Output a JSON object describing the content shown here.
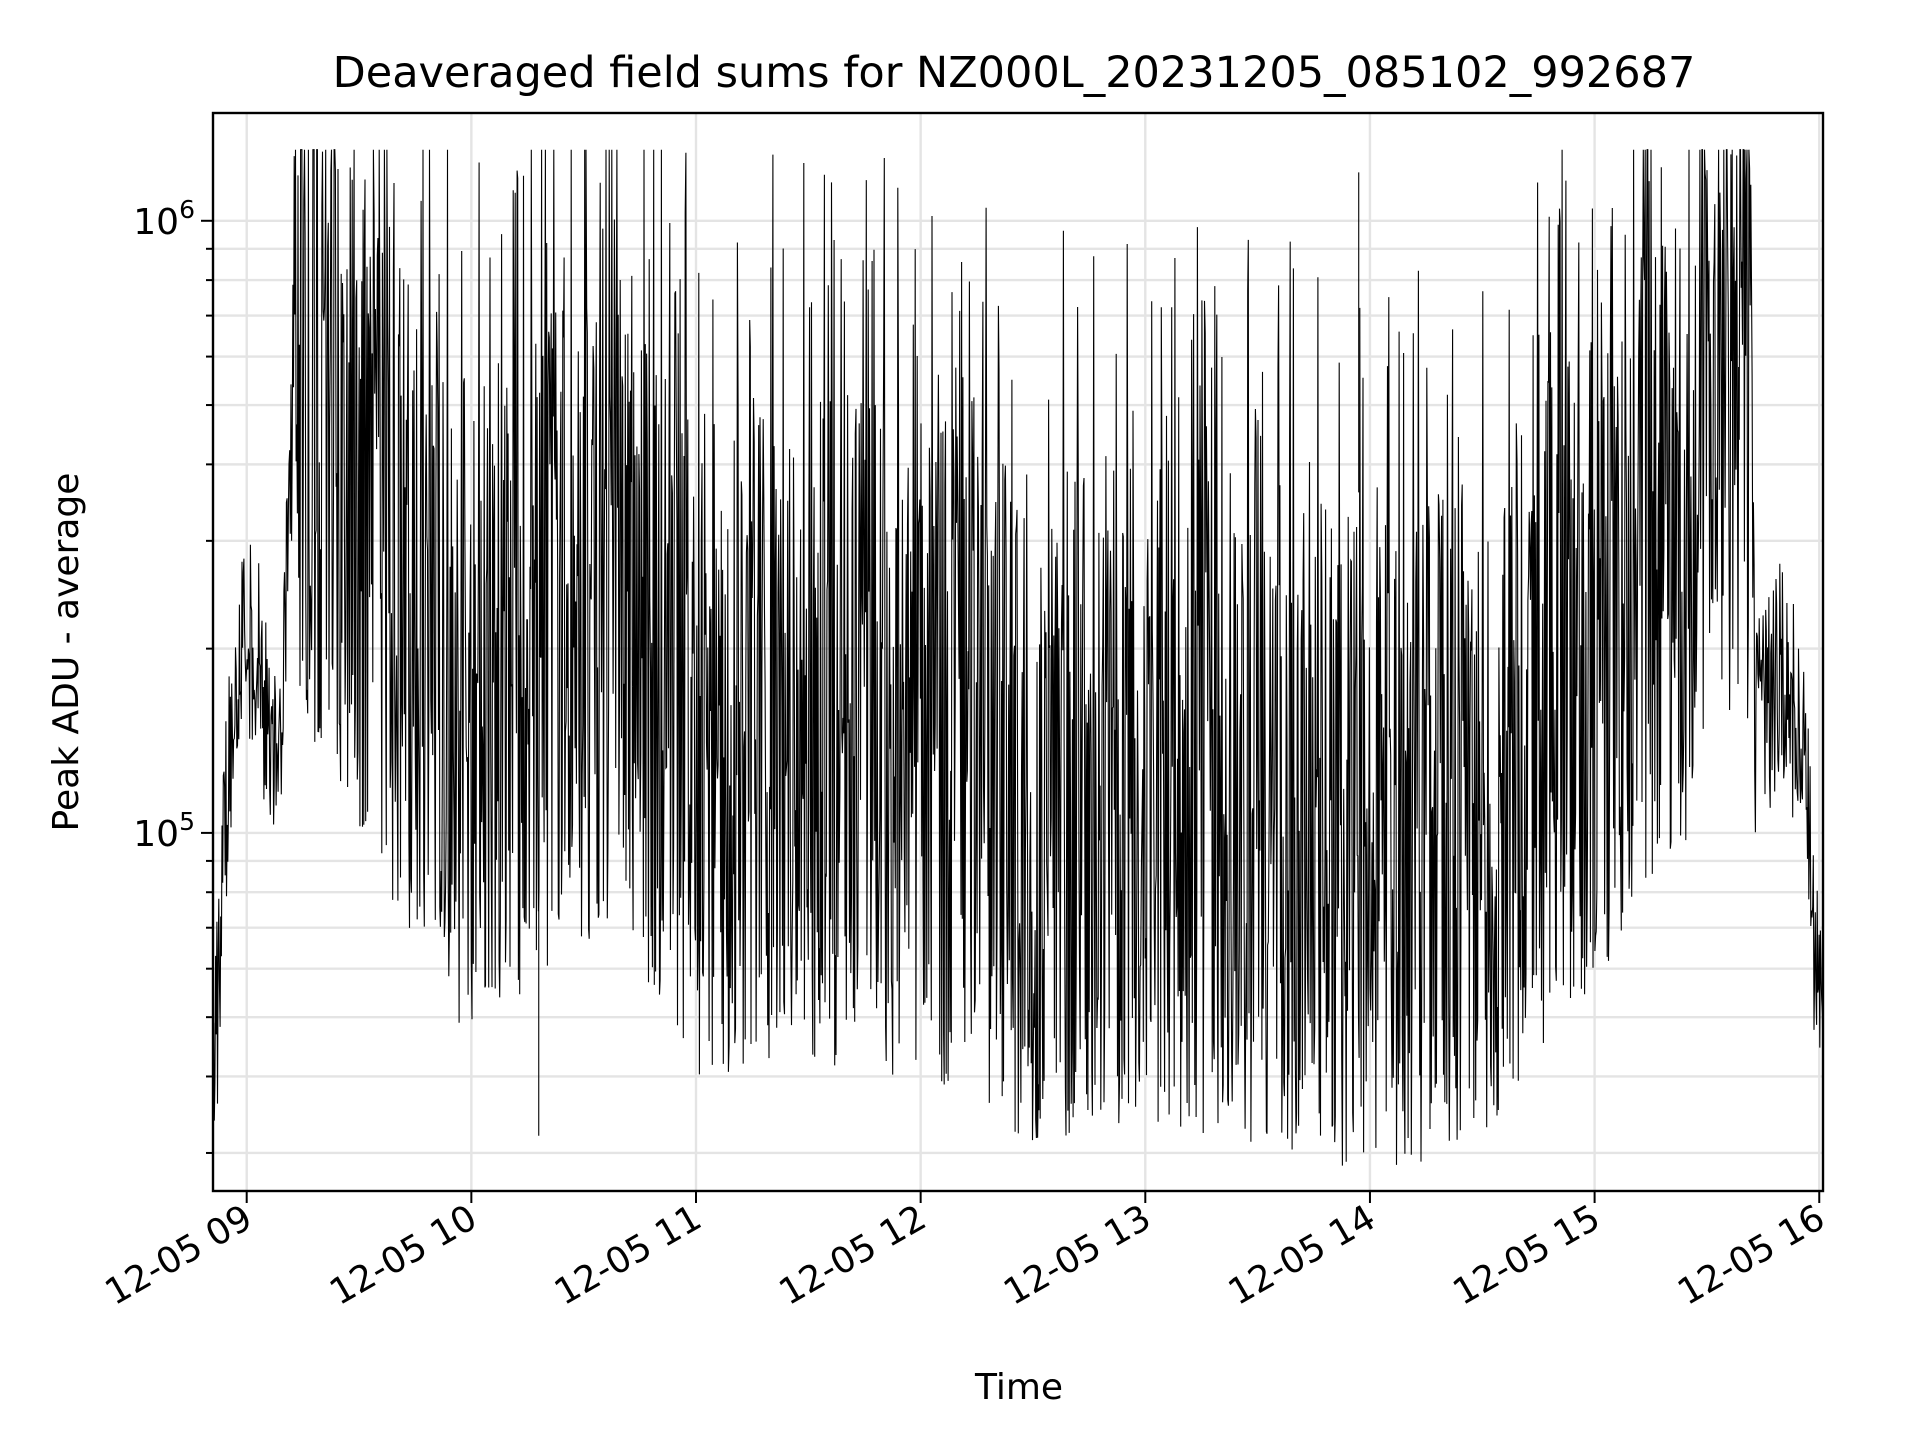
{
  "chart_data": {
    "type": "line",
    "title": "Deaveraged field sums for NZ000L_20231205_085102_992687",
    "xlabel": "Time",
    "ylabel": "Peak ADU - average",
    "yscale": "log",
    "grid": true,
    "line_color": "#000000",
    "xlim": [
      "2023-12-05 08:51",
      "2023-12-05 16:01"
    ],
    "ylim": [
      26000,
      1500000
    ],
    "x_ticks": [
      "12-05 09",
      "12-05 10",
      "12-05 11",
      "12-05 12",
      "12-05 13",
      "12-05 14",
      "12-05 15",
      "12-05 16"
    ],
    "y_ticks": [
      {
        "base": "10",
        "exp": "5",
        "value": 100000
      },
      {
        "base": "10",
        "exp": "6",
        "value": 1000000
      }
    ],
    "series": [
      {
        "x_start": "2023-12-05 08:51",
        "x_end": "2023-12-05 16:01",
        "approx_point_count": 2500,
        "values_sample": [
          {
            "x": "2023-12-05 08:51",
            "y": 38000
          },
          {
            "x": "2023-12-05 08:55",
            "y": 120000
          },
          {
            "x": "2023-12-05 08:58",
            "y": 190000
          },
          {
            "x": "2023-12-05 09:03",
            "y": 200000
          },
          {
            "x": "2023-12-05 09:06",
            "y": 130000
          },
          {
            "x": "2023-12-05 09:09",
            "y": 160000
          },
          {
            "x": "2023-12-05 09:13",
            "y": 520000
          },
          {
            "x": "2023-12-05 09:20",
            "y": 480000
          },
          {
            "x": "2023-12-05 09:30",
            "y": 350000
          },
          {
            "x": "2023-12-05 09:45",
            "y": 230000
          },
          {
            "x": "2023-12-05 10:00",
            "y": 160000
          },
          {
            "x": "2023-12-05 10:20",
            "y": 200000
          },
          {
            "x": "2023-12-05 10:40",
            "y": 250000
          },
          {
            "x": "2023-12-05 11:00",
            "y": 140000
          },
          {
            "x": "2023-12-05 11:30",
            "y": 150000
          },
          {
            "x": "2023-12-05 12:00",
            "y": 140000
          },
          {
            "x": "2023-12-05 12:30",
            "y": 110000
          },
          {
            "x": "2023-12-05 13:00",
            "y": 120000
          },
          {
            "x": "2023-12-05 13:30",
            "y": 110000
          },
          {
            "x": "2023-12-05 14:00",
            "y": 90000
          },
          {
            "x": "2023-12-05 14:30",
            "y": 110000
          },
          {
            "x": "2023-12-05 15:00",
            "y": 200000
          },
          {
            "x": "2023-12-05 15:20",
            "y": 300000
          },
          {
            "x": "2023-12-05 15:35",
            "y": 450000
          },
          {
            "x": "2023-12-05 15:40",
            "y": 600000
          },
          {
            "x": "2023-12-05 15:45",
            "y": 150000
          },
          {
            "x": "2023-12-05 15:50",
            "y": 190000
          },
          {
            "x": "2023-12-05 15:56",
            "y": 130000
          },
          {
            "x": "2023-12-05 16:01",
            "y": 40000
          }
        ],
        "peak": {
          "x": "2023-12-05 13:57",
          "y": 1200000
        },
        "trough": {
          "x": "2023-12-05 10:18",
          "y": 32000
        }
      }
    ]
  }
}
